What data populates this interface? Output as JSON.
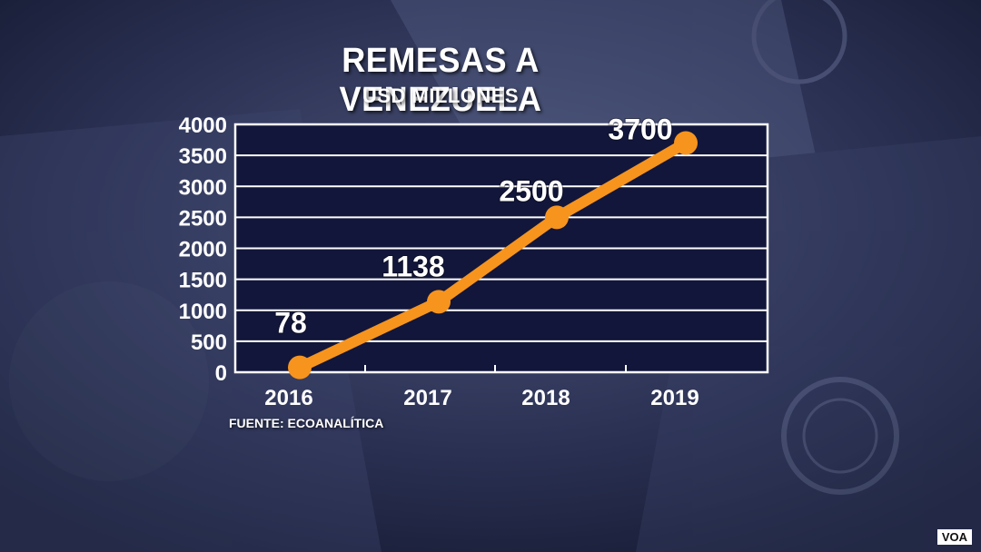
{
  "title": "REMESAS A VENEZUELA",
  "subtitle": "USD MILLONES",
  "source": "FUENTE: ECOANALÍTICA",
  "logo": "VOA",
  "colors": {
    "background": "#1c2340",
    "plot_area": "#12163a",
    "line": "#f7941d",
    "text": "#ffffff",
    "gridline": "#ffffff"
  },
  "chart_data": {
    "type": "line",
    "title": "REMESAS A VENEZUELA",
    "subtitle": "USD MILLONES",
    "x": [
      "2016",
      "2017",
      "2018",
      "2019"
    ],
    "series": [
      {
        "values": [
          78,
          1138,
          2500,
          3700
        ],
        "labels": [
          "78",
          "1138",
          "2500",
          "3700"
        ]
      }
    ],
    "yticks": [
      "0",
      "500",
      "1000",
      "1500",
      "2000",
      "2500",
      "3000",
      "3500",
      "4000"
    ],
    "ylim": [
      0,
      4000
    ],
    "grid": true,
    "legend": "none"
  }
}
